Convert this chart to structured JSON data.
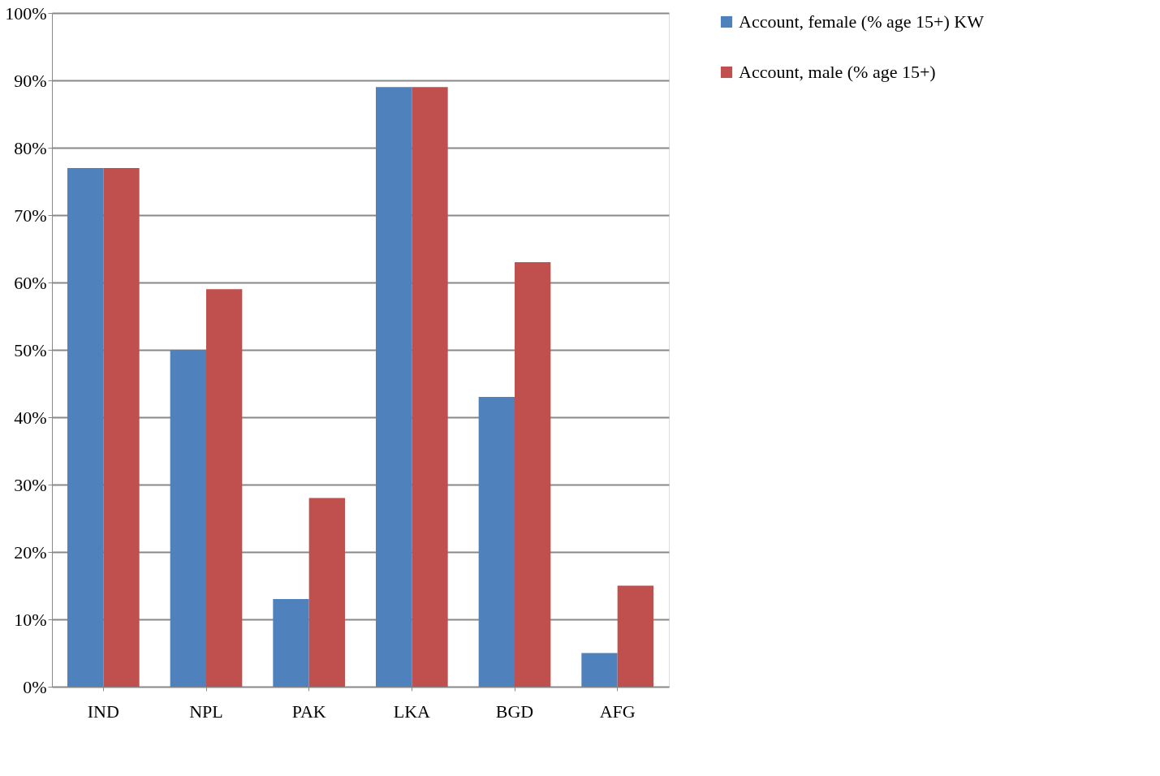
{
  "chart_data": {
    "type": "bar",
    "categories": [
      "IND",
      "NPL",
      "PAK",
      "LKA",
      "BGD",
      "AFG"
    ],
    "series": [
      {
        "name": "Account, female (% age 15+) KW",
        "color": "#4f81bd",
        "values": [
          77,
          50,
          13,
          89,
          43,
          5
        ]
      },
      {
        "name": "Account, male (% age 15+)",
        "color": "#c0504d",
        "values": [
          77,
          59,
          28,
          89,
          63,
          15
        ]
      }
    ],
    "ylim": [
      0,
      100
    ],
    "yticks": [
      {
        "value": 0,
        "label": "0%"
      },
      {
        "value": 10,
        "label": "10%"
      },
      {
        "value": 20,
        "label": "20%"
      },
      {
        "value": 30,
        "label": "30%"
      },
      {
        "value": 40,
        "label": "40%"
      },
      {
        "value": 50,
        "label": "50%"
      },
      {
        "value": 60,
        "label": "60%"
      },
      {
        "value": 70,
        "label": "70%"
      },
      {
        "value": 80,
        "label": "80%"
      },
      {
        "value": 90,
        "label": "90%"
      },
      {
        "value": 100,
        "label": "100%"
      }
    ],
    "grid": "y",
    "legend": "right"
  }
}
